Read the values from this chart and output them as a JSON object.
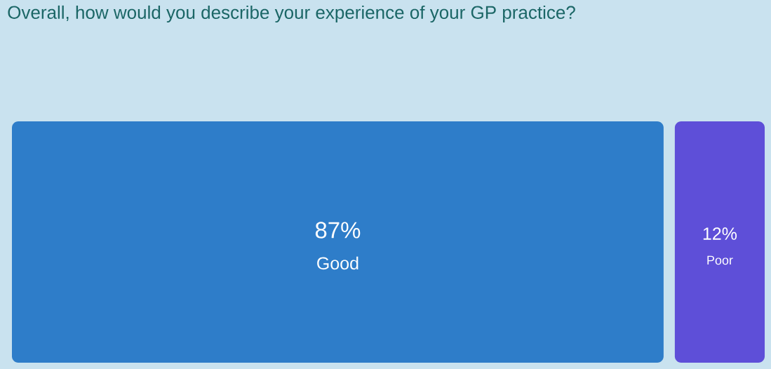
{
  "chart_data": {
    "type": "other",
    "title": "Overall, how would you describe your experience of your GP practice?",
    "categories": [
      "Good",
      "Poor"
    ],
    "values": [
      87,
      12
    ],
    "value_labels": [
      "87%",
      "12%"
    ],
    "colors": [
      "#2e7dc9",
      "#5e4fd8"
    ]
  }
}
